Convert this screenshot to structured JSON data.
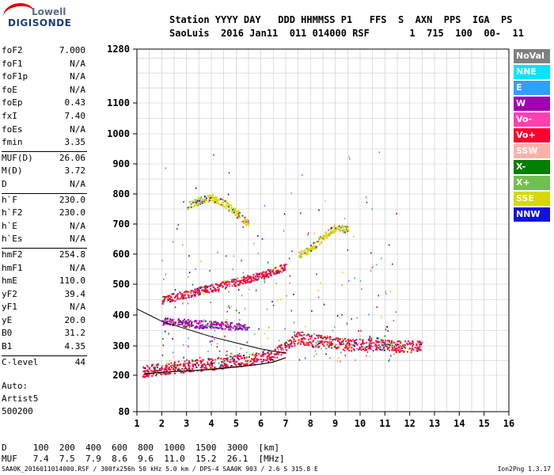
{
  "logo": {
    "line1": "Lowell",
    "line2": "DIGISONDE"
  },
  "header": {
    "labels": "Station YYYY DAY   DDD HHMMSS P1   FFS  S  AXN  PPS  IGA  PS",
    "values": "SaoLuis  2016 Jan11  011 014000 RSF       1  715  100  00-  11"
  },
  "params_group1": [
    {
      "k": "foF2",
      "v": "7.000"
    },
    {
      "k": "foF1",
      "v": "N/A"
    },
    {
      "k": "foF1p",
      "v": "N/A"
    },
    {
      "k": "foE",
      "v": "N/A"
    },
    {
      "k": "foEp",
      "v": "0.43"
    },
    {
      "k": "fxI",
      "v": "7.40"
    },
    {
      "k": "foEs",
      "v": "N/A"
    },
    {
      "k": "fmin",
      "v": "3.35"
    }
  ],
  "params_group2": [
    {
      "k": "MUF(D)",
      "v": "26.06"
    },
    {
      "k": "M(D)",
      "v": "3.72"
    },
    {
      "k": "D",
      "v": "N/A"
    }
  ],
  "params_group3": [
    {
      "k": "h`F",
      "v": "230.0"
    },
    {
      "k": "h`F2",
      "v": "230.0"
    },
    {
      "k": "h`E",
      "v": "N/A"
    },
    {
      "k": "h`Es",
      "v": "N/A"
    }
  ],
  "params_group4": [
    {
      "k": "hmF2",
      "v": "254.8"
    },
    {
      "k": "hmF1",
      "v": "N/A"
    },
    {
      "k": "hmE",
      "v": "110.0"
    },
    {
      "k": "yF2",
      "v": "39.4"
    },
    {
      "k": "yF1",
      "v": "N/A"
    },
    {
      "k": "yE",
      "v": "20.0"
    },
    {
      "k": "B0",
      "v": "31.2"
    },
    {
      "k": "B1",
      "v": "4.35"
    }
  ],
  "params_group5": [
    {
      "k": "C-level",
      "v": "44"
    }
  ],
  "auto": {
    "line1": "Auto:",
    "line2": "Artist5",
    "line3": "500200"
  },
  "legend": [
    {
      "label": "NoVal",
      "color": "#808080"
    },
    {
      "label": "NNE",
      "color": "#00e8f8"
    },
    {
      "label": "E",
      "color": "#30a0ff"
    },
    {
      "label": "W",
      "color": "#a000b0"
    },
    {
      "label": "Vo-",
      "color": "#ff40b0"
    },
    {
      "label": "Vo+",
      "color": "#ff0030"
    },
    {
      "label": "SSW",
      "color": "#ffb0a8"
    },
    {
      "label": "X-",
      "color": "#008000"
    },
    {
      "label": "X+",
      "color": "#70c050"
    },
    {
      "label": "SSE",
      "color": "#d8d800"
    },
    {
      "label": "NNW",
      "color": "#1010e0"
    }
  ],
  "bottom": {
    "d_row": "D     100  200  400  600  800  1000  1500  3000  [km]",
    "muf_row": "MUF   7.4  7.5  7.9  8.6  9.6  11.0  15.2  26.1  [MHz]"
  },
  "footer": "SAA0K_2016011014000.RSF / 300fx256h 50 kHz 5.0 km / DPS-4 SAA0K 903 / 2.6 S 315.8 E",
  "version": "Ion2Png 1.3.17",
  "chart_data": {
    "type": "scatter",
    "x_ticks": [
      "1",
      "2",
      "3",
      "4",
      "5",
      "6",
      "7",
      "8",
      "9",
      "10",
      "11",
      "12",
      "13",
      "14",
      "15",
      "16"
    ],
    "y_ticks": [
      "80",
      "200",
      "300",
      "400",
      "500",
      "600",
      "700",
      "800",
      "900",
      "1000",
      "1100",
      "1280"
    ],
    "xlim": [
      1,
      16
    ],
    "ylim": [
      80,
      1280
    ],
    "grid": true,
    "legend_position": "right",
    "traces": [
      {
        "name": "Vo+",
        "x": [
          1.2,
          1.6,
          2.0,
          2.5,
          3.0,
          3.5,
          4.0,
          4.5,
          5.0,
          5.5,
          6.0,
          6.5,
          7.0,
          7.5,
          8.0,
          8.5,
          9.0,
          9.5,
          10.0,
          10.5,
          11.0,
          11.5,
          12.0,
          12.5
        ],
        "y": [
          215,
          220,
          222,
          228,
          232,
          236,
          240,
          244,
          250,
          255,
          262,
          272,
          300,
          330,
          320,
          315,
          310,
          305,
          305,
          310,
          305,
          300,
          300,
          305
        ]
      },
      {
        "name": "Vo+",
        "x": [
          2.0,
          2.5,
          3.0,
          3.5,
          4.0,
          4.5,
          5.0,
          5.5,
          6.0,
          6.5,
          7.0
        ],
        "y": [
          450,
          460,
          470,
          480,
          490,
          500,
          510,
          520,
          530,
          545,
          560
        ]
      },
      {
        "name": "W",
        "x": [
          2.0,
          2.5,
          3.0,
          3.5,
          4.0,
          4.5,
          5.0,
          5.5
        ],
        "y": [
          380,
          380,
          375,
          372,
          370,
          368,
          365,
          365
        ]
      },
      {
        "name": "SSE",
        "x": [
          3.0,
          3.5,
          4.0,
          4.5,
          5.0,
          5.5
        ],
        "y": [
          760,
          780,
          790,
          770,
          740,
          700
        ]
      },
      {
        "name": "SSE",
        "x": [
          7.5,
          8.0,
          8.5,
          9.0,
          9.5
        ],
        "y": [
          600,
          620,
          660,
          690,
          680
        ]
      }
    ],
    "profile": {
      "x": [
        1.3,
        2.0,
        3.0,
        4.0,
        5.0,
        6.0,
        6.5,
        7.0
      ],
      "y": [
        205,
        210,
        215,
        220,
        228,
        238,
        245,
        260
      ]
    },
    "profile2": {
      "x": [
        1.0,
        1.5,
        2.0,
        3.0,
        4.0,
        5.0,
        6.0,
        7.0
      ],
      "y": [
        420,
        400,
        380,
        355,
        330,
        310,
        290,
        275
      ]
    }
  }
}
